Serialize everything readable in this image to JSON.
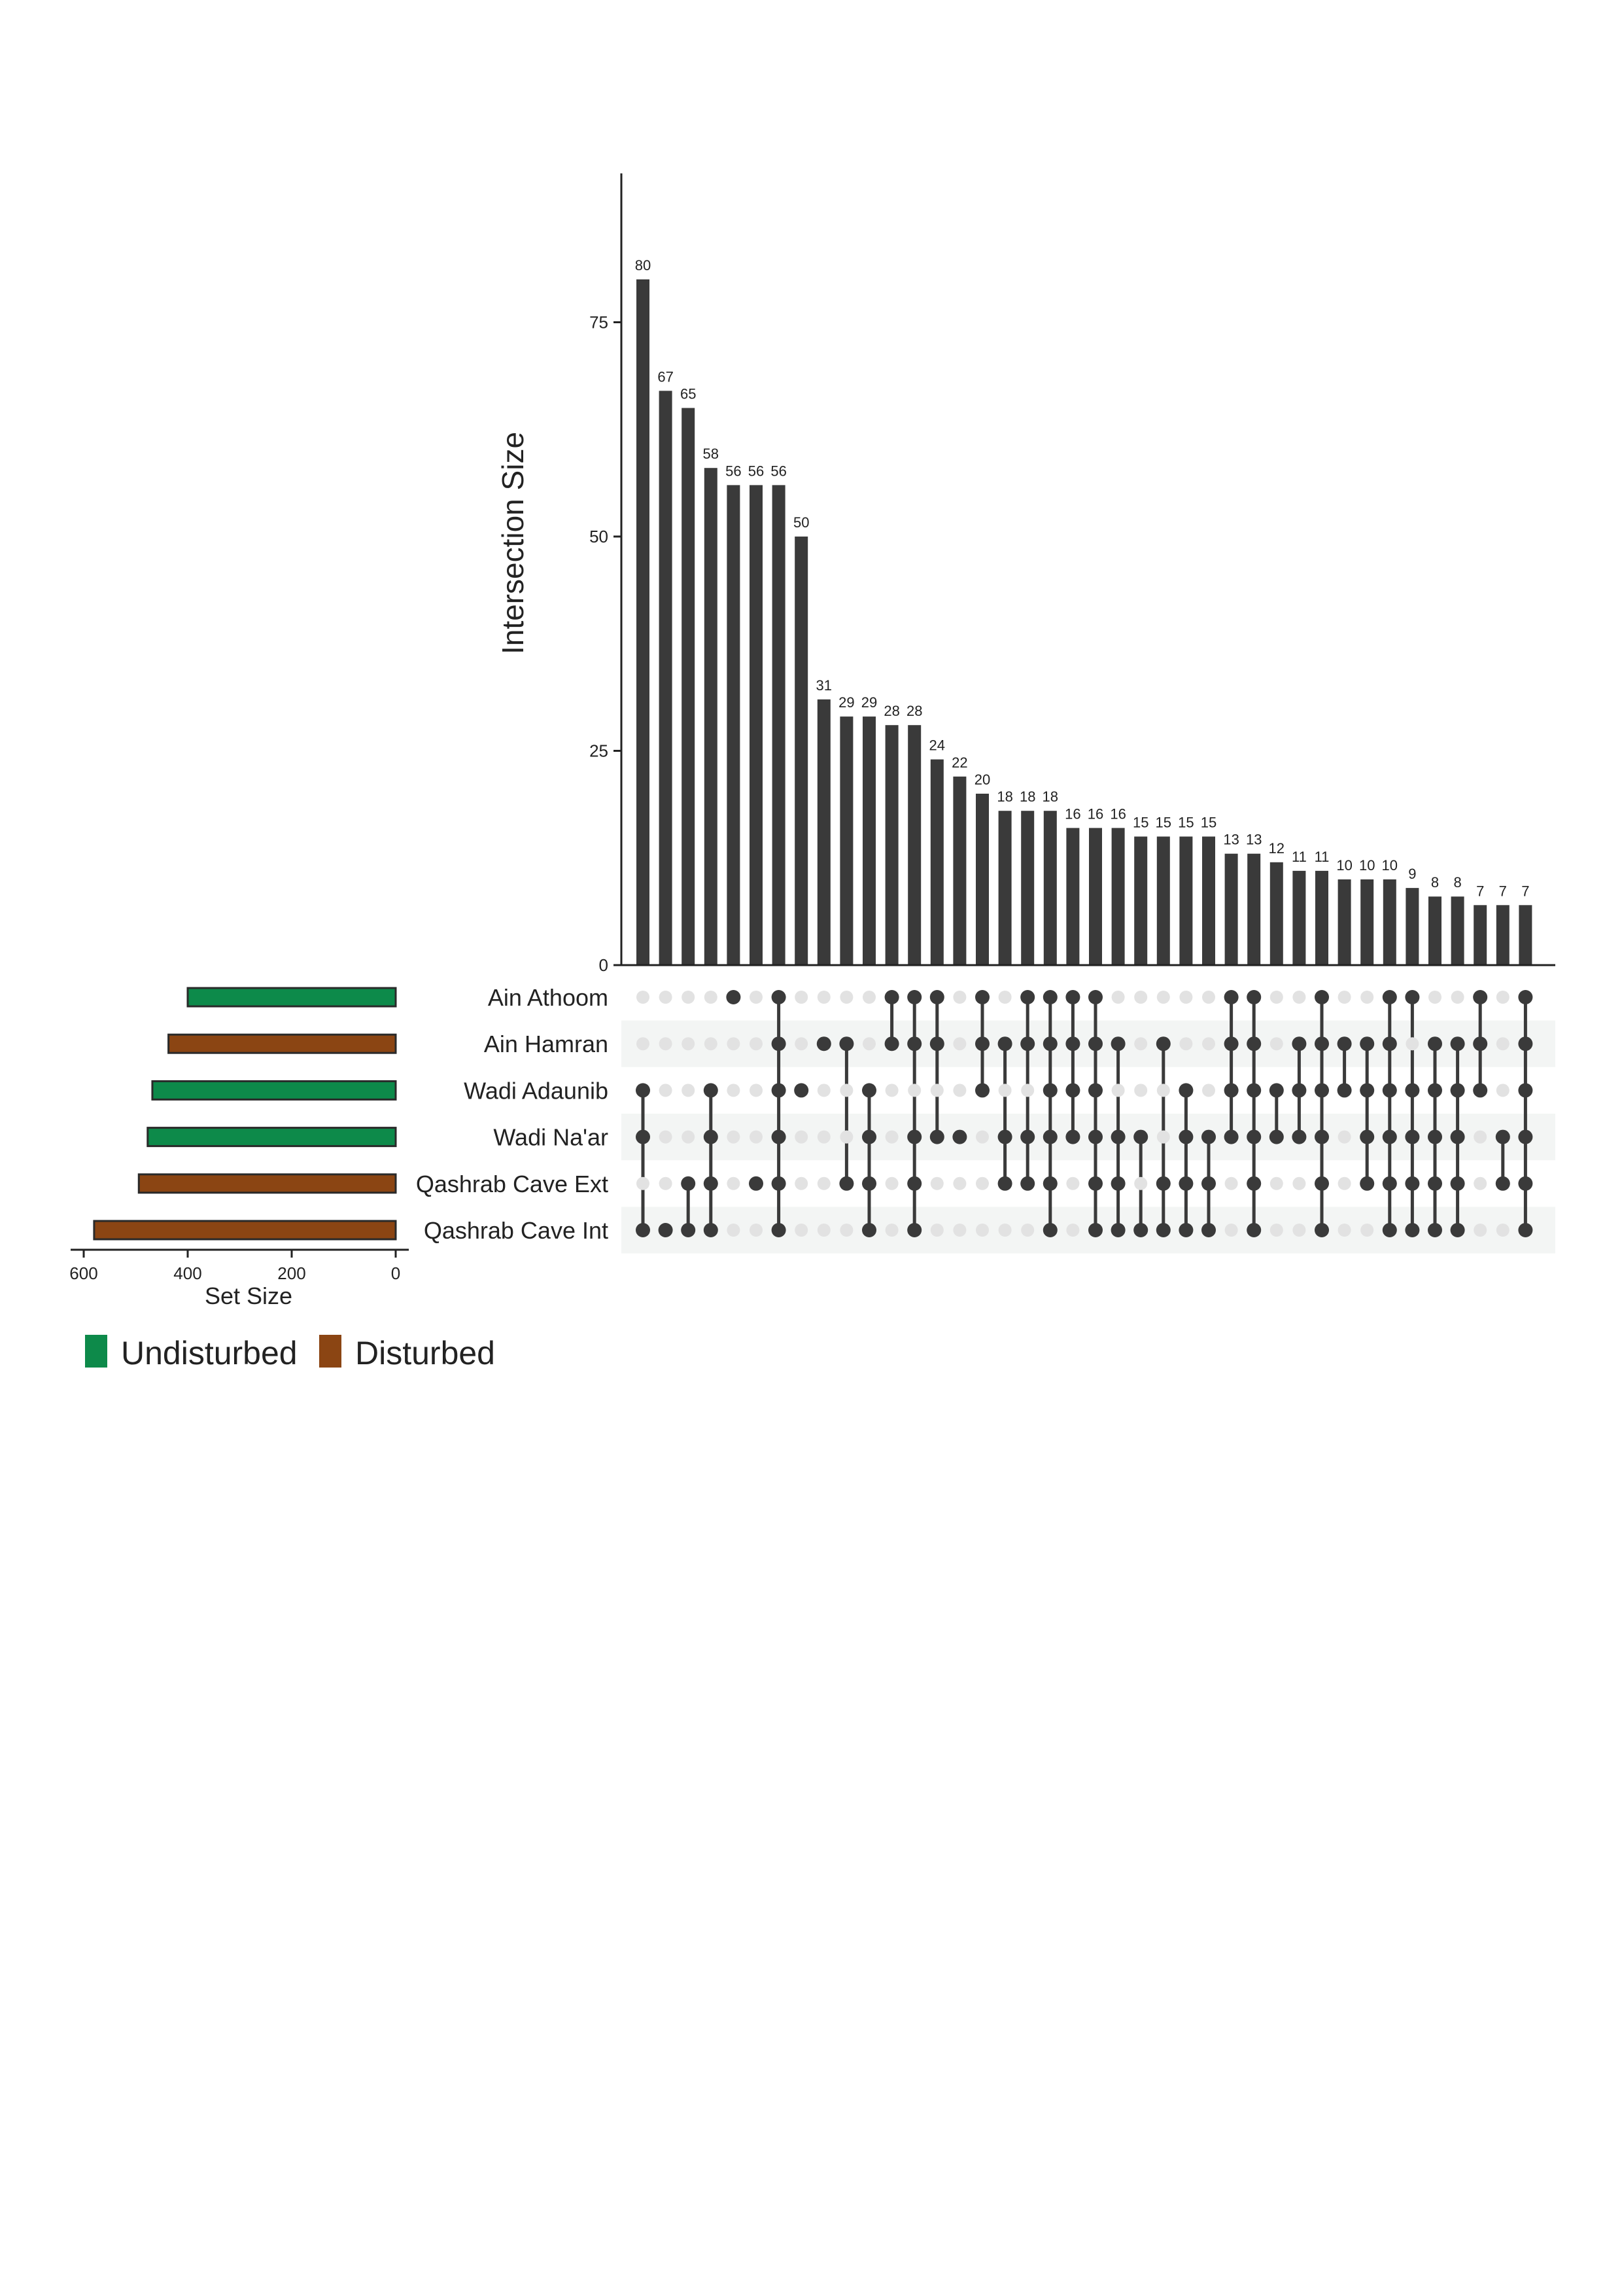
{
  "chart_data": {
    "type": "bar",
    "subtype": "upset",
    "ylabel": "Intersection Size",
    "ylim": [
      0,
      90
    ],
    "yticks": [
      0,
      25,
      50,
      75
    ],
    "sets": [
      {
        "name": "Ain Athoom",
        "size": 400,
        "group": "Undisturbed",
        "color": "#0d8a4a"
      },
      {
        "name": "Ain Hamran",
        "size": 437,
        "group": "Disturbed",
        "color": "#8b4513"
      },
      {
        "name": "Wadi Adaunib",
        "size": 468,
        "group": "Undisturbed",
        "color": "#0d8a4a"
      },
      {
        "name": "Wadi Na'ar",
        "size": 477,
        "group": "Undisturbed",
        "color": "#0d8a4a"
      },
      {
        "name": "Qashrab Cave Ext",
        "size": 494,
        "group": "Disturbed",
        "color": "#8b4513"
      },
      {
        "name": "Qashrab Cave Int",
        "size": 580,
        "group": "Disturbed",
        "color": "#8b4513"
      }
    ],
    "set_size_axis": {
      "xlabel": "Set Size",
      "xlim": [
        600,
        0
      ],
      "ticks": [
        600,
        400,
        200,
        0
      ]
    },
    "intersections": [
      {
        "size": 80,
        "sets": [
          "Wadi Adaunib",
          "Wadi Na'ar",
          "Qashrab Cave Int"
        ]
      },
      {
        "size": 67,
        "sets": [
          "Qashrab Cave Int"
        ]
      },
      {
        "size": 65,
        "sets": [
          "Qashrab Cave Ext",
          "Qashrab Cave Int"
        ]
      },
      {
        "size": 58,
        "sets": [
          "Wadi Adaunib",
          "Wadi Na'ar",
          "Qashrab Cave Ext",
          "Qashrab Cave Int"
        ]
      },
      {
        "size": 56,
        "sets": [
          "Ain Athoom"
        ]
      },
      {
        "size": 56,
        "sets": [
          "Qashrab Cave Ext"
        ]
      },
      {
        "size": 56,
        "sets": [
          "Ain Athoom",
          "Ain Hamran",
          "Wadi Adaunib",
          "Wadi Na'ar",
          "Qashrab Cave Ext",
          "Qashrab Cave Int"
        ]
      },
      {
        "size": 50,
        "sets": [
          "Wadi Adaunib"
        ]
      },
      {
        "size": 31,
        "sets": [
          "Ain Hamran"
        ]
      },
      {
        "size": 29,
        "sets": [
          "Ain Hamran",
          "Qashrab Cave Ext"
        ]
      },
      {
        "size": 29,
        "sets": [
          "Wadi Adaunib",
          "Wadi Na'ar",
          "Qashrab Cave Ext",
          "Qashrab Cave Int"
        ]
      },
      {
        "size": 28,
        "sets": [
          "Ain Athoom",
          "Ain Hamran"
        ]
      },
      {
        "size": 28,
        "sets": [
          "Ain Athoom",
          "Ain Hamran",
          "Wadi Na'ar",
          "Qashrab Cave Ext",
          "Qashrab Cave Int"
        ]
      },
      {
        "size": 24,
        "sets": [
          "Ain Athoom",
          "Ain Hamran",
          "Wadi Na'ar"
        ]
      },
      {
        "size": 22,
        "sets": [
          "Wadi Na'ar"
        ]
      },
      {
        "size": 20,
        "sets": [
          "Ain Athoom",
          "Ain Hamran",
          "Wadi Adaunib"
        ]
      },
      {
        "size": 18,
        "sets": [
          "Ain Hamran",
          "Wadi Na'ar",
          "Qashrab Cave Ext"
        ]
      },
      {
        "size": 18,
        "sets": [
          "Ain Athoom",
          "Ain Hamran",
          "Wadi Na'ar",
          "Qashrab Cave Ext"
        ]
      },
      {
        "size": 18,
        "sets": [
          "Ain Athoom",
          "Ain Hamran",
          "Wadi Adaunib",
          "Wadi Na'ar",
          "Qashrab Cave Ext",
          "Qashrab Cave Int"
        ]
      },
      {
        "size": 16,
        "sets": [
          "Ain Athoom",
          "Ain Hamran",
          "Wadi Adaunib",
          "Wadi Na'ar"
        ]
      },
      {
        "size": 16,
        "sets": [
          "Ain Athoom",
          "Ain Hamran",
          "Wadi Adaunib",
          "Wadi Na'ar",
          "Qashrab Cave Ext",
          "Qashrab Cave Int"
        ]
      },
      {
        "size": 16,
        "sets": [
          "Ain Hamran",
          "Wadi Na'ar",
          "Qashrab Cave Ext",
          "Qashrab Cave Int"
        ]
      },
      {
        "size": 15,
        "sets": [
          "Wadi Na'ar",
          "Qashrab Cave Int"
        ]
      },
      {
        "size": 15,
        "sets": [
          "Ain Hamran",
          "Qashrab Cave Ext",
          "Qashrab Cave Int"
        ]
      },
      {
        "size": 15,
        "sets": [
          "Wadi Adaunib",
          "Wadi Na'ar",
          "Qashrab Cave Ext",
          "Qashrab Cave Int"
        ]
      },
      {
        "size": 15,
        "sets": [
          "Wadi Na'ar",
          "Qashrab Cave Ext",
          "Qashrab Cave Int"
        ]
      },
      {
        "size": 13,
        "sets": [
          "Ain Athoom",
          "Ain Hamran",
          "Wadi Adaunib",
          "Wadi Na'ar"
        ]
      },
      {
        "size": 13,
        "sets": [
          "Ain Athoom",
          "Ain Hamran",
          "Wadi Adaunib",
          "Wadi Na'ar",
          "Qashrab Cave Ext",
          "Qashrab Cave Int"
        ]
      },
      {
        "size": 12,
        "sets": [
          "Wadi Adaunib",
          "Wadi Na'ar"
        ]
      },
      {
        "size": 11,
        "sets": [
          "Ain Hamran",
          "Wadi Adaunib",
          "Wadi Na'ar"
        ]
      },
      {
        "size": 11,
        "sets": [
          "Ain Athoom",
          "Ain Hamran",
          "Wadi Adaunib",
          "Wadi Na'ar",
          "Qashrab Cave Ext",
          "Qashrab Cave Int"
        ]
      },
      {
        "size": 10,
        "sets": [
          "Ain Hamran",
          "Wadi Adaunib"
        ]
      },
      {
        "size": 10,
        "sets": [
          "Ain Hamran",
          "Wadi Adaunib",
          "Wadi Na'ar",
          "Qashrab Cave Ext"
        ]
      },
      {
        "size": 10,
        "sets": [
          "Ain Athoom",
          "Ain Hamran",
          "Wadi Adaunib",
          "Wadi Na'ar",
          "Qashrab Cave Ext",
          "Qashrab Cave Int"
        ]
      },
      {
        "size": 9,
        "sets": [
          "Ain Athoom",
          "Wadi Adaunib",
          "Wadi Na'ar",
          "Qashrab Cave Ext",
          "Qashrab Cave Int"
        ]
      },
      {
        "size": 8,
        "sets": [
          "Ain Hamran",
          "Wadi Adaunib",
          "Wadi Na'ar",
          "Qashrab Cave Ext",
          "Qashrab Cave Int"
        ]
      },
      {
        "size": 8,
        "sets": [
          "Ain Hamran",
          "Wadi Adaunib",
          "Wadi Na'ar",
          "Qashrab Cave Ext",
          "Qashrab Cave Int"
        ]
      },
      {
        "size": 7,
        "sets": [
          "Ain Athoom",
          "Ain Hamran",
          "Wadi Adaunib"
        ]
      },
      {
        "size": 7,
        "sets": [
          "Wadi Na'ar",
          "Qashrab Cave Ext"
        ]
      },
      {
        "size": 7,
        "sets": [
          "Ain Athoom",
          "Ain Hamran",
          "Wadi Adaunib",
          "Wadi Na'ar",
          "Qashrab Cave Ext",
          "Qashrab Cave Int"
        ]
      }
    ],
    "legend": {
      "placement": "bottom-left",
      "entries": [
        {
          "label": "Undisturbed",
          "color": "#0d8a4a"
        },
        {
          "label": "Disturbed",
          "color": "#8b4513"
        }
      ]
    },
    "colors": {
      "bar": "#3a3a3a",
      "dot_active": "#3a3a3a",
      "dot_inactive": "#e2e2e2",
      "row_shade": "#f3f5f4"
    },
    "grid": false
  }
}
